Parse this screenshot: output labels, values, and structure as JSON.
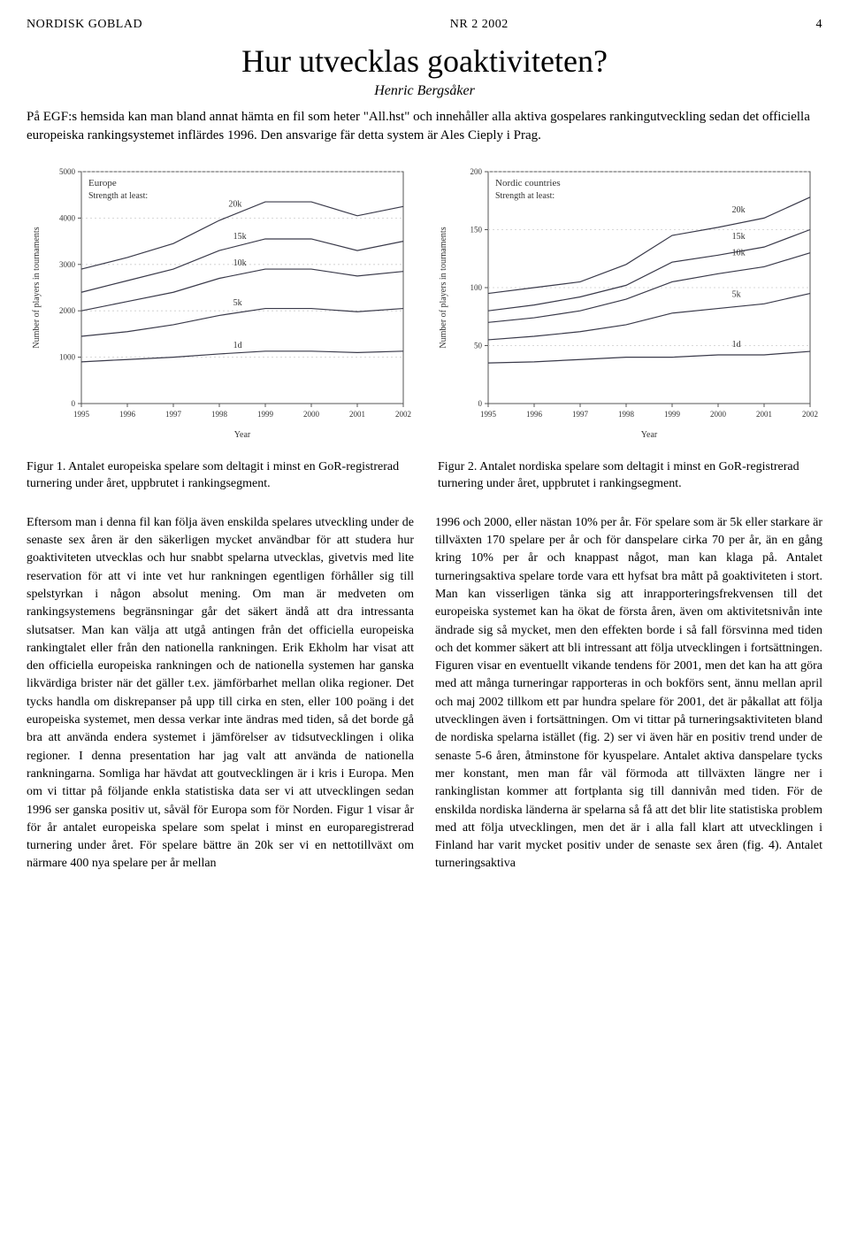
{
  "header": {
    "publication": "NORDISK GOBLAD",
    "issue": "NR 2 2002",
    "page": "4"
  },
  "title": "Hur utvecklas goaktiviteten?",
  "author": "Henric Bergsåker",
  "intro": "På EGF:s hemsida kan man bland annat hämta en fil som heter \"All.hst\" och innehåller alla aktiva gospelares rankingutveckling sedan det officiella europeiska rankingsystemet inflärdes 1996. Den ansvarige fär detta system är Ales Cieply i Prag.",
  "chart1": {
    "type": "line",
    "title": "Europe",
    "subtitle": "Strength at least:",
    "xlabel": "Year",
    "ylabel": "Number of players in tournaments",
    "xlim": [
      1995,
      2002
    ],
    "ylim": [
      0,
      5000
    ],
    "xticks": [
      1995,
      1996,
      1997,
      1998,
      1999,
      2000,
      2001,
      2002
    ],
    "yticks": [
      0,
      1000,
      2000,
      3000,
      4000,
      5000
    ],
    "grid_color": "#cccccc",
    "line_color": "#3a3a4a",
    "background_color": "#ffffff",
    "label_fontsize": 10,
    "tick_fontsize": 9,
    "series": [
      {
        "label": "20k",
        "values": [
          2900,
          3150,
          3450,
          3950,
          4350,
          4350,
          4050,
          4250
        ],
        "label_x": 1998.2,
        "label_y": 4250
      },
      {
        "label": "15k",
        "values": [
          2400,
          2650,
          2900,
          3300,
          3550,
          3550,
          3300,
          3500
        ],
        "label_x": 1998.3,
        "label_y": 3550
      },
      {
        "label": "10k",
        "values": [
          2000,
          2200,
          2400,
          2700,
          2900,
          2900,
          2750,
          2850
        ],
        "label_x": 1998.3,
        "label_y": 2980
      },
      {
        "label": "5k",
        "values": [
          1450,
          1550,
          1700,
          1900,
          2050,
          2050,
          1980,
          2050
        ],
        "label_x": 1998.3,
        "label_y": 2120
      },
      {
        "label": "1d",
        "values": [
          900,
          950,
          1000,
          1070,
          1130,
          1130,
          1100,
          1130
        ],
        "label_x": 1998.3,
        "label_y": 1200
      }
    ]
  },
  "chart2": {
    "type": "line",
    "title": "Nordic countries",
    "subtitle": "Strength at least:",
    "xlabel": "Year",
    "ylabel": "Number of players in tournaments",
    "xlim": [
      1995,
      2002
    ],
    "ylim": [
      0,
      200
    ],
    "xticks": [
      1995,
      1996,
      1997,
      1998,
      1999,
      2000,
      2001,
      2002
    ],
    "yticks": [
      0,
      50,
      100,
      150,
      200
    ],
    "grid_color": "#cccccc",
    "line_color": "#3a3a4a",
    "background_color": "#ffffff",
    "label_fontsize": 10,
    "tick_fontsize": 9,
    "series": [
      {
        "label": "20k",
        "values": [
          95,
          100,
          105,
          120,
          145,
          152,
          160,
          178
        ],
        "label_x": 2000.3,
        "label_y": 165
      },
      {
        "label": "15k",
        "values": [
          80,
          85,
          92,
          102,
          122,
          128,
          135,
          150
        ],
        "label_x": 2000.3,
        "label_y": 142
      },
      {
        "label": "10k",
        "values": [
          70,
          74,
          80,
          90,
          105,
          112,
          118,
          130
        ],
        "label_x": 2000.3,
        "label_y": 128
      },
      {
        "label": "5k",
        "values": [
          55,
          58,
          62,
          68,
          78,
          82,
          86,
          95
        ],
        "label_x": 2000.3,
        "label_y": 92
      },
      {
        "label": "1d",
        "values": [
          35,
          36,
          38,
          40,
          40,
          42,
          42,
          45
        ],
        "label_x": 2000.3,
        "label_y": 49
      }
    ]
  },
  "caption1": "Figur 1. Antalet europeiska spelare som deltagit i minst en GoR-registrerad turnering under året, uppbrutet i rankingsegment.",
  "caption2": "Figur 2. Antalet nordiska spelare som deltagit i minst en GoR-registrerad turnering under året, uppbrutet i rankingsegment.",
  "body": {
    "col1": "Eftersom man i denna fil kan följa även enskilda spelares utveckling under de senaste sex åren är den säkerligen mycket användbar för att studera hur goaktiviteten utvecklas och hur snabbt spelarna utvecklas, givetvis med lite reservation för att vi inte vet hur rankningen egentligen förhåller sig till spelstyrkan i någon absolut mening. Om man är medveten om rankingsystemens begränsningar går det säkert ändå att dra intressanta slutsatser. Man kan välja att utgå antingen från det officiella europeiska rankingtalet eller från den nationella rankningen. Erik Ekholm har visat att den officiella europeiska rankningen och de nationella systemen har ganska likvärdiga brister när det gäller t.ex. jämförbarhet mellan olika regioner. Det tycks handla om diskrepanser på upp till cirka en sten, eller 100 poäng i det europeiska systemet, men dessa verkar inte ändras med tiden, så det borde gå bra att använda endera systemet i jämförelser av tidsutvecklingen i olika regioner. I denna presentation har jag valt att använda de nationella rankningarna. Somliga har hävdat att goutvecklingen är i kris i Europa. Men om vi tittar på följande enkla statistiska data ser vi att utvecklingen sedan 1996 ser ganska positiv ut, såväl för Europa som för Norden. Figur 1 visar år för år antalet europeiska spelare som spelat i minst en europaregistrerad turnering under året. För spelare bättre än 20k ser vi en nettotillväxt om närmare 400 nya spelare per år mellan",
    "col2": "1996 och 2000, eller nästan 10% per år. För spelare som är 5k eller starkare är tillväxten 170 spelare per år och för danspelare cirka 70 per år, än en gång kring 10% per år och knappast något, man kan klaga på. Antalet turneringsaktiva spelare torde vara ett hyfsat bra mått på goaktiviteten i stort. Man kan visserligen tänka sig att inrapporteringsfrekvensen till det europeiska systemet kan ha ökat de första åren, även om aktivitetsnivån inte ändrade sig så mycket, men den effekten borde i så fall försvinna med tiden och det kommer säkert att bli intressant att följa utvecklingen i fortsättningen. Figuren visar en eventuellt vikande tendens för 2001, men det kan ha att göra med att många turneringar rapporteras in och bokförs sent, ännu mellan april och maj 2002 tillkom ett par hundra spelare för 2001, det är påkallat att följa utvecklingen även i fortsättningen. Om vi tittar på turneringsaktiviteten bland de nordiska spelarna istället (fig. 2) ser vi även här en positiv trend under de senaste 5-6 åren, åtminstone för kyuspelare. Antalet aktiva danspelare tycks mer konstant, men man får väl förmoda att tillväxten längre ner i rankinglistan kommer att fortplanta sig till dannivån med tiden. För de enskilda nordiska länderna är spelarna så få att det blir lite statistiska problem med att följa utvecklingen, men det är i alla fall klart att utvecklingen i Finland har varit mycket positiv under de senaste sex åren (fig. 4). Antalet turneringsaktiva"
  }
}
